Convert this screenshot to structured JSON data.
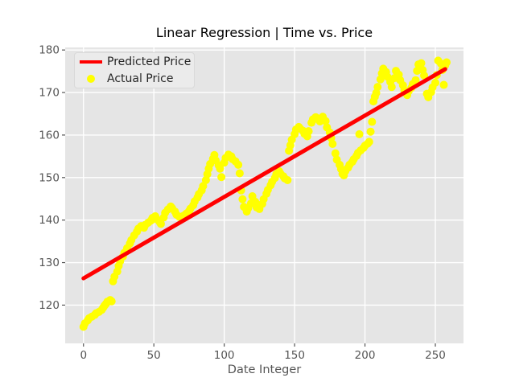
{
  "chart_data": {
    "type": "scatter",
    "title": "Linear Regression | Time vs. Price",
    "xlabel": "Date Integer",
    "ylabel": "",
    "xlim": [
      -13,
      270
    ],
    "ylim": [
      111,
      180.6
    ],
    "x_ticks": [
      0,
      50,
      100,
      150,
      200,
      250
    ],
    "y_ticks": [
      120,
      130,
      140,
      150,
      160,
      170,
      180
    ],
    "grid": true,
    "legend": {
      "position": "upper left",
      "entries": [
        "Predicted Price",
        "Actual Price"
      ]
    },
    "colors": {
      "figure_bg": "#ffffff",
      "axes_bg": "#e5e5e5",
      "grid": "#ffffff",
      "tick_text": "#555555",
      "title_text": "#000000",
      "legend_bg": "#ebebeb",
      "legend_border": "#d9d9d9",
      "predicted": "#ff0000",
      "actual": "#ffff00"
    },
    "series": [
      {
        "name": "Predicted Price",
        "type": "line",
        "color": "#ff0000",
        "linewidth": 5,
        "x": [
          0,
          257
        ],
        "y": [
          126.3,
          175.5
        ]
      },
      {
        "name": "Actual Price",
        "type": "scatter",
        "color": "#ffff00",
        "marker_radius": 5,
        "points": [
          [
            0,
            114.9
          ],
          [
            1,
            115.7
          ],
          [
            3,
            116.4
          ],
          [
            4,
            116.9
          ],
          [
            6,
            117.3
          ],
          [
            8,
            117.7
          ],
          [
            9,
            118.1
          ],
          [
            11,
            118.4
          ],
          [
            13,
            118.9
          ],
          [
            14,
            119.4
          ],
          [
            15,
            119.9
          ],
          [
            16,
            120.3
          ],
          [
            17,
            120.8
          ],
          [
            19,
            121.2
          ],
          [
            20,
            120.9
          ],
          [
            21,
            125.6
          ],
          [
            22,
            126.7
          ],
          [
            24,
            127.9
          ],
          [
            25,
            129.2
          ],
          [
            26,
            130.3
          ],
          [
            28,
            131.4
          ],
          [
            29,
            132.3
          ],
          [
            31,
            133.4
          ],
          [
            33,
            134.5
          ],
          [
            34,
            135.3
          ],
          [
            36,
            136.4
          ],
          [
            38,
            137.3
          ],
          [
            39,
            138.0
          ],
          [
            41,
            138.6
          ],
          [
            43,
            138.2
          ],
          [
            44,
            138.9
          ],
          [
            46,
            139.4
          ],
          [
            48,
            139.9
          ],
          [
            49,
            140.5
          ],
          [
            51,
            140.9
          ],
          [
            52,
            140.2
          ],
          [
            54,
            139.6
          ],
          [
            55,
            139.1
          ],
          [
            57,
            140.6
          ],
          [
            58,
            141.7
          ],
          [
            60,
            142.5
          ],
          [
            62,
            143.2
          ],
          [
            63,
            142.8
          ],
          [
            65,
            142.0
          ],
          [
            66,
            141.3
          ],
          [
            68,
            140.8
          ],
          [
            70,
            140.4
          ],
          [
            71,
            141.0
          ],
          [
            73,
            141.5
          ],
          [
            75,
            142.1
          ],
          [
            76,
            142.7
          ],
          [
            78,
            143.5
          ],
          [
            79,
            144.4
          ],
          [
            81,
            145.3
          ],
          [
            82,
            146.1
          ],
          [
            84,
            147.0
          ],
          [
            85,
            148.0
          ],
          [
            87,
            149.4
          ],
          [
            88,
            150.8
          ],
          [
            89,
            152.1
          ],
          [
            90,
            153.2
          ],
          [
            92,
            154.4
          ],
          [
            93,
            155.3
          ],
          [
            94,
            154.0
          ],
          [
            96,
            152.9
          ],
          [
            97,
            152.1
          ],
          [
            98,
            150.1
          ],
          [
            100,
            153.5
          ],
          [
            101,
            154.6
          ],
          [
            103,
            155.4
          ],
          [
            105,
            155.0
          ],
          [
            106,
            154.3
          ],
          [
            108,
            153.8
          ],
          [
            110,
            153.0
          ],
          [
            111,
            151.0
          ],
          [
            112,
            147.0
          ],
          [
            113,
            144.9
          ],
          [
            114,
            143.1
          ],
          [
            116,
            142.0
          ],
          [
            117,
            142.8
          ],
          [
            119,
            143.9
          ],
          [
            120,
            145.6
          ],
          [
            122,
            144.3
          ],
          [
            123,
            143.0
          ],
          [
            125,
            142.6
          ],
          [
            127,
            143.8
          ],
          [
            128,
            144.9
          ],
          [
            130,
            146.2
          ],
          [
            131,
            147.1
          ],
          [
            133,
            148.2
          ],
          [
            134,
            149.0
          ],
          [
            136,
            149.9
          ],
          [
            137,
            150.8
          ],
          [
            139,
            151.5
          ],
          [
            140,
            150.9
          ],
          [
            142,
            150.3
          ],
          [
            143,
            149.8
          ],
          [
            145,
            149.4
          ],
          [
            146,
            156.3
          ],
          [
            147,
            157.6
          ],
          [
            148,
            158.9
          ],
          [
            150,
            160.2
          ],
          [
            151,
            161.3
          ],
          [
            153,
            161.9
          ],
          [
            154,
            161.5
          ],
          [
            156,
            161.0
          ],
          [
            157,
            160.3
          ],
          [
            159,
            159.7
          ],
          [
            160,
            160.9
          ],
          [
            162,
            162.9
          ],
          [
            163,
            163.7
          ],
          [
            165,
            164.2
          ],
          [
            166,
            163.8
          ],
          [
            168,
            163.2
          ],
          [
            169,
            163.9
          ],
          [
            170,
            164.3
          ],
          [
            172,
            163.3
          ],
          [
            173,
            161.8
          ],
          [
            175,
            160.6
          ],
          [
            176,
            159.3
          ],
          [
            177,
            157.9
          ],
          [
            179,
            155.7
          ],
          [
            180,
            154.2
          ],
          [
            182,
            153.0
          ],
          [
            183,
            152.0
          ],
          [
            184,
            150.9
          ],
          [
            185,
            150.5
          ],
          [
            186,
            151.5
          ],
          [
            188,
            152.3
          ],
          [
            189,
            153.0
          ],
          [
            191,
            153.7
          ],
          [
            192,
            154.3
          ],
          [
            194,
            155.1
          ],
          [
            195,
            155.8
          ],
          [
            196,
            160.2
          ],
          [
            197,
            156.4
          ],
          [
            199,
            157.0
          ],
          [
            200,
            157.5
          ],
          [
            202,
            158.0
          ],
          [
            203,
            158.4
          ],
          [
            204,
            160.8
          ],
          [
            205,
            163.1
          ],
          [
            206,
            167.9
          ],
          [
            207,
            169.0
          ],
          [
            208,
            169.9
          ],
          [
            209,
            171.3
          ],
          [
            211,
            173.1
          ],
          [
            212,
            174.5
          ],
          [
            213,
            175.6
          ],
          [
            215,
            174.8
          ],
          [
            216,
            173.7
          ],
          [
            218,
            172.5
          ],
          [
            219,
            171.3
          ],
          [
            221,
            173.4
          ],
          [
            222,
            175.1
          ],
          [
            224,
            174.2
          ],
          [
            225,
            172.9
          ],
          [
            227,
            171.7
          ],
          [
            228,
            170.5
          ],
          [
            230,
            169.4
          ],
          [
            231,
            170.3
          ],
          [
            233,
            171.1
          ],
          [
            234,
            172.0
          ],
          [
            236,
            172.9
          ],
          [
            237,
            175.1
          ],
          [
            238,
            176.6
          ],
          [
            240,
            176.9
          ],
          [
            241,
            175.3
          ],
          [
            242,
            174.0
          ],
          [
            244,
            169.7
          ],
          [
            245,
            168.9
          ],
          [
            247,
            170.1
          ],
          [
            248,
            171.2
          ],
          [
            250,
            172.3
          ],
          [
            251,
            174.1
          ],
          [
            252,
            177.5
          ],
          [
            254,
            176.8
          ],
          [
            255,
            175.3
          ],
          [
            256,
            171.8
          ],
          [
            257,
            176.4
          ],
          [
            258,
            177.1
          ]
        ]
      }
    ]
  }
}
